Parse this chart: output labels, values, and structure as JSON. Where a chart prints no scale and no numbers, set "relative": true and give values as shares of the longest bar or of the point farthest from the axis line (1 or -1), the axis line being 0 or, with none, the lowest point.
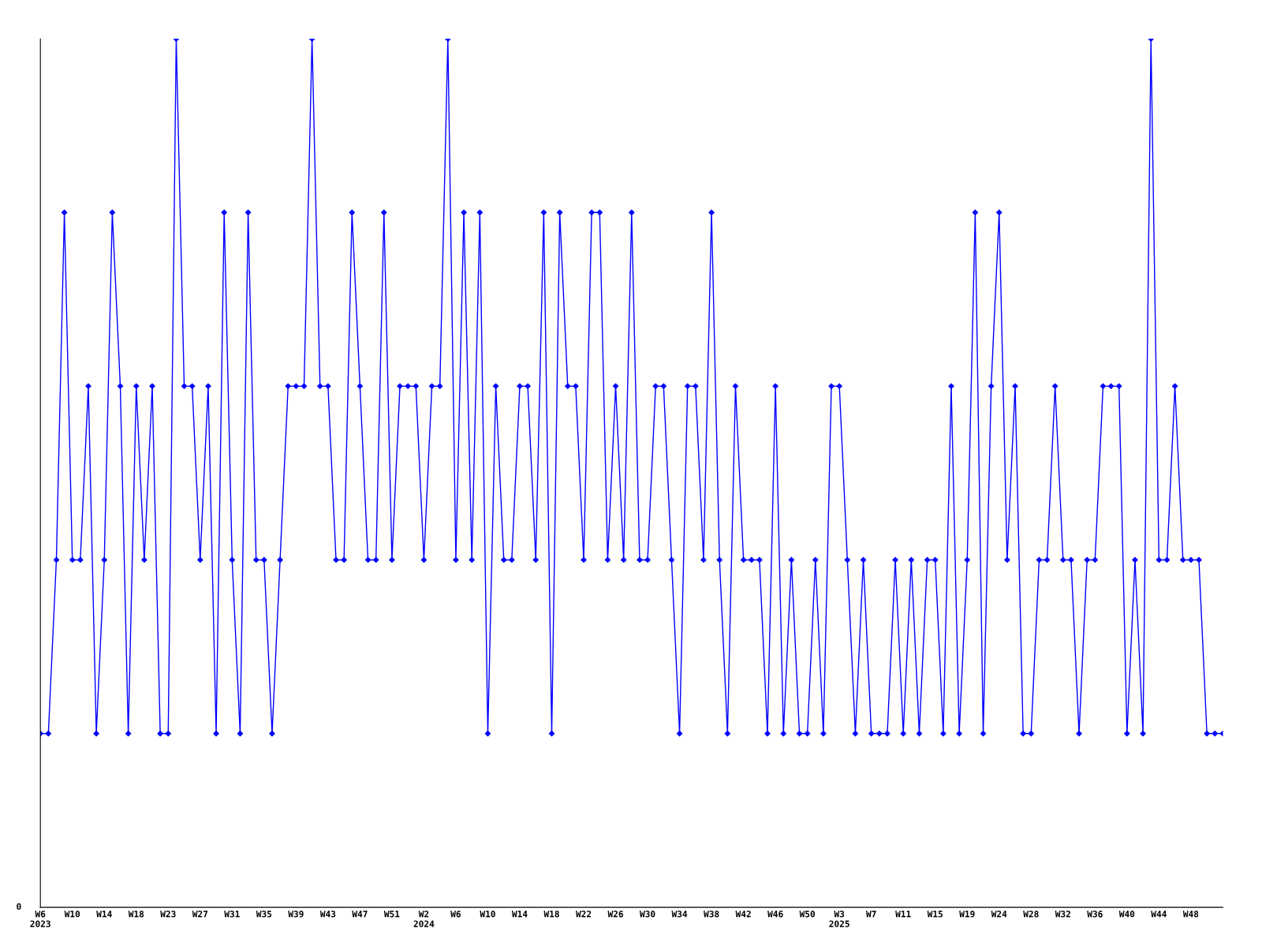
{
  "chart_data": {
    "type": "line",
    "relative": true,
    "marker": "diamond",
    "line_style": "solid",
    "grid": false,
    "legend": false,
    "categories": [
      "W6\n2023",
      null,
      null,
      null,
      "W10",
      null,
      null,
      null,
      "W14",
      null,
      null,
      null,
      "W18",
      null,
      null,
      null,
      "W23",
      null,
      null,
      null,
      "W27",
      null,
      null,
      null,
      "W31",
      null,
      null,
      null,
      "W35",
      null,
      null,
      null,
      "W39",
      null,
      null,
      null,
      "W43",
      null,
      null,
      null,
      "W47",
      null,
      null,
      null,
      "W51",
      null,
      null,
      null,
      "W2\n2024",
      null,
      null,
      null,
      "W6",
      null,
      null,
      null,
      "W10",
      null,
      null,
      null,
      "W14",
      null,
      null,
      null,
      "W18",
      null,
      null,
      null,
      "W22",
      null,
      null,
      null,
      "W26",
      null,
      null,
      null,
      "W30",
      null,
      null,
      null,
      "W34",
      null,
      null,
      null,
      "W38",
      null,
      null,
      null,
      "W42",
      null,
      null,
      null,
      "W46",
      null,
      null,
      null,
      "W50",
      null,
      null,
      null,
      "W3\n2025",
      null,
      null,
      null,
      "W7",
      null,
      null,
      null,
      "W11",
      null,
      null,
      null,
      "W15",
      null,
      null,
      null,
      "W19",
      null,
      null,
      null,
      "W24",
      null,
      null,
      null,
      "W28",
      null,
      null,
      null,
      "W32",
      null,
      null,
      null,
      "W36",
      null,
      null,
      null,
      "W40",
      null,
      null,
      null,
      "W44",
      null,
      null,
      null,
      "W48",
      null,
      null,
      null,
      null
    ],
    "series": [
      {
        "color": "#0000ff",
        "values": [
          0.2,
          0.2,
          0.4,
          0.8,
          0.4,
          0.4,
          0.6,
          0.2,
          0.4,
          0.8,
          0.6,
          0.2,
          0.6,
          0.4,
          0.6,
          0.2,
          0.2,
          1.0,
          0.6,
          0.6,
          0.4,
          0.6,
          0.2,
          0.8,
          0.4,
          0.2,
          0.8,
          0.4,
          0.4,
          0.2,
          0.4,
          0.6,
          0.6,
          0.6,
          1.0,
          0.6,
          0.6,
          0.4,
          0.4,
          0.8,
          0.6,
          0.4,
          0.4,
          0.8,
          0.4,
          0.6,
          0.6,
          0.6,
          0.4,
          0.6,
          0.6,
          1.0,
          0.4,
          0.8,
          0.4,
          0.8,
          0.2,
          0.6,
          0.4,
          0.4,
          0.6,
          0.6,
          0.4,
          0.8,
          0.2,
          0.8,
          0.6,
          0.6,
          0.4,
          0.8,
          0.8,
          0.4,
          0.6,
          0.4,
          0.8,
          0.4,
          0.4,
          0.6,
          0.6,
          0.4,
          0.2,
          0.6,
          0.6,
          0.4,
          0.8,
          0.4,
          0.2,
          0.6,
          0.4,
          0.4,
          0.4,
          0.2,
          0.6,
          0.2,
          0.4,
          0.2,
          0.2,
          0.4,
          0.2,
          0.6,
          0.6,
          0.4,
          0.2,
          0.4,
          0.2,
          0.2,
          0.2,
          0.4,
          0.2,
          0.4,
          0.2,
          0.4,
          0.4,
          0.2,
          0.6,
          0.2,
          0.4,
          0.8,
          0.2,
          0.6,
          0.8,
          0.4,
          0.6,
          0.2,
          0.2,
          0.4,
          0.4,
          0.6,
          0.4,
          0.4,
          0.2,
          0.4,
          0.4,
          0.6,
          0.6,
          0.6,
          0.2,
          0.4,
          0.2,
          1.0,
          0.4,
          0.4,
          0.6,
          0.4,
          0.4,
          0.4,
          0.2,
          0.2,
          0.2
        ]
      }
    ],
    "annotations": [
      "0"
    ]
  }
}
